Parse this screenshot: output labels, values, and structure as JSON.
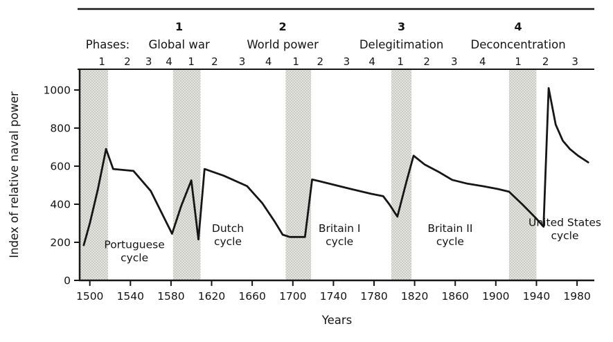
{
  "chart_data": {
    "type": "line",
    "title": "",
    "xlabel": "Years",
    "ylabel": "Index of relative naval power",
    "xlim": [
      1490,
      1997
    ],
    "ylim": [
      0,
      1109
    ],
    "x_ticks": [
      1500,
      1540,
      1580,
      1620,
      1660,
      1700,
      1740,
      1780,
      1820,
      1860,
      1900,
      1940,
      1980
    ],
    "y_ticks": [
      0,
      200,
      400,
      600,
      800,
      1000
    ],
    "grid": false,
    "legend": "none",
    "colors": {
      "line": "#161616",
      "band_fill": "#e4e4e0",
      "band_dot": "#96968f",
      "text": "#141414",
      "axis": "#161616"
    },
    "phase_header": {
      "label": "Phases:",
      "label_year": 1496,
      "groups": [
        {
          "number": "1",
          "name": "Global war",
          "year": 1588
        },
        {
          "number": "2",
          "name": "World power",
          "year": 1690
        },
        {
          "number": "3",
          "name": "Delegitimation",
          "year": 1807
        },
        {
          "number": "4",
          "name": "Deconcentration",
          "year": 1922
        }
      ]
    },
    "phase_ticks": [
      {
        "label": "1",
        "year": 1512
      },
      {
        "label": "2",
        "year": 1537
      },
      {
        "label": "3",
        "year": 1558
      },
      {
        "label": "4",
        "year": 1578
      },
      {
        "label": "1",
        "year": 1600
      },
      {
        "label": "2",
        "year": 1623
      },
      {
        "label": "3",
        "year": 1650
      },
      {
        "label": "4",
        "year": 1676
      },
      {
        "label": "1",
        "year": 1703
      },
      {
        "label": "2",
        "year": 1727
      },
      {
        "label": "3",
        "year": 1753
      },
      {
        "label": "4",
        "year": 1778
      },
      {
        "label": "1",
        "year": 1806
      },
      {
        "label": "2",
        "year": 1832
      },
      {
        "label": "3",
        "year": 1859
      },
      {
        "label": "4",
        "year": 1887
      },
      {
        "label": "1",
        "year": 1922
      },
      {
        "label": "2",
        "year": 1949
      },
      {
        "label": "3",
        "year": 1978
      }
    ],
    "war_bands": [
      [
        1490,
        1518
      ],
      [
        1582,
        1609
      ],
      [
        1693,
        1718
      ],
      [
        1797,
        1817
      ],
      [
        1913,
        1940
      ]
    ],
    "series": [
      {
        "name": "Index of relative naval power",
        "points": [
          [
            1494,
            185
          ],
          [
            1500,
            300
          ],
          [
            1508,
            480
          ],
          [
            1516,
            690
          ],
          [
            1523,
            585
          ],
          [
            1543,
            575
          ],
          [
            1560,
            470
          ],
          [
            1581,
            245
          ],
          [
            1590,
            390
          ],
          [
            1600,
            525
          ],
          [
            1607,
            215
          ],
          [
            1613,
            585
          ],
          [
            1632,
            550
          ],
          [
            1655,
            495
          ],
          [
            1670,
            405
          ],
          [
            1682,
            310
          ],
          [
            1690,
            240
          ],
          [
            1697,
            228
          ],
          [
            1712,
            228
          ],
          [
            1719,
            530
          ],
          [
            1727,
            520
          ],
          [
            1752,
            487
          ],
          [
            1777,
            455
          ],
          [
            1789,
            442
          ],
          [
            1795,
            400
          ],
          [
            1803,
            335
          ],
          [
            1812,
            520
          ],
          [
            1819,
            655
          ],
          [
            1830,
            608
          ],
          [
            1843,
            572
          ],
          [
            1857,
            528
          ],
          [
            1872,
            508
          ],
          [
            1888,
            494
          ],
          [
            1902,
            480
          ],
          [
            1913,
            466
          ],
          [
            1926,
            400
          ],
          [
            1939,
            330
          ],
          [
            1947,
            282
          ],
          [
            1952,
            1010
          ],
          [
            1959,
            818
          ],
          [
            1966,
            733
          ],
          [
            1973,
            690
          ],
          [
            1981,
            655
          ],
          [
            1991,
            620
          ]
        ]
      }
    ],
    "cycle_labels": [
      {
        "lines": [
          "Portuguese",
          "cycle"
        ],
        "year": 1544,
        "value": 170
      },
      {
        "lines": [
          "Dutch",
          "cycle"
        ],
        "year": 1636,
        "value": 255
      },
      {
        "lines": [
          "Britain I",
          "cycle"
        ],
        "year": 1746,
        "value": 255
      },
      {
        "lines": [
          "Britain II",
          "cycle"
        ],
        "year": 1855,
        "value": 255
      },
      {
        "lines": [
          "United States",
          "cycle"
        ],
        "year": 1968,
        "value": 285
      }
    ]
  }
}
